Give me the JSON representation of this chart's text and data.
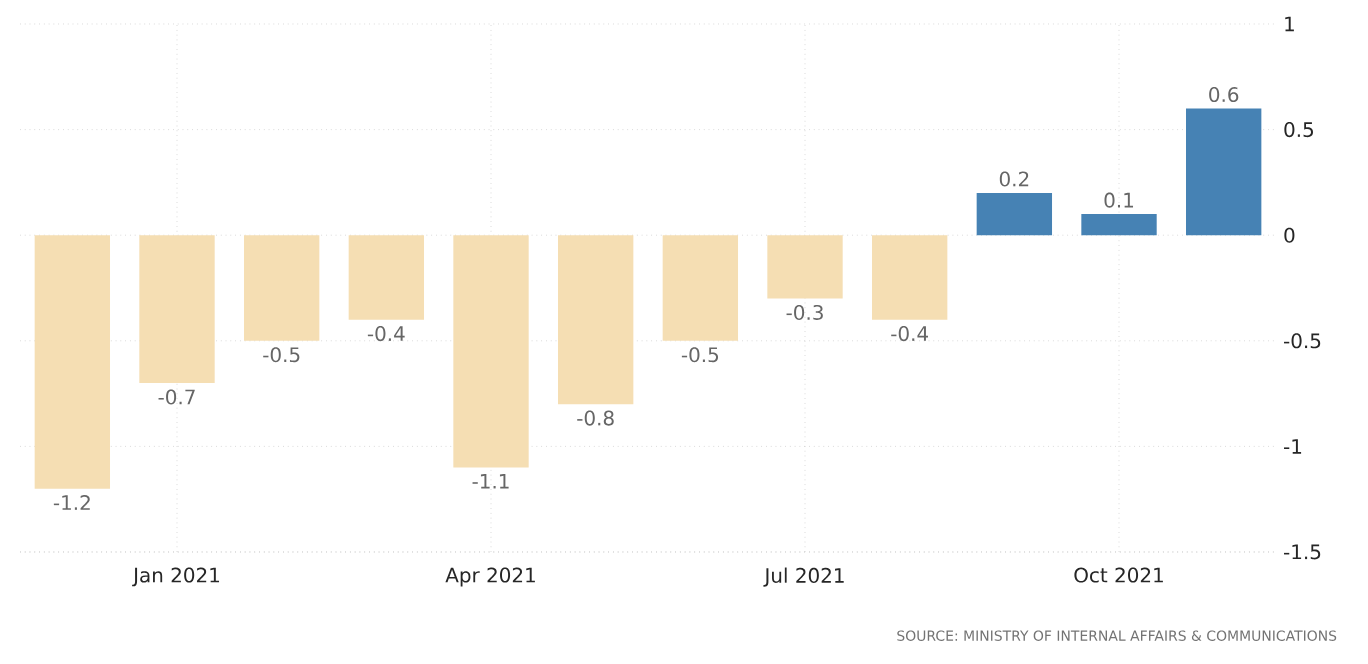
{
  "chart_data": {
    "type": "bar",
    "categories": [
      null,
      "Jan 2021",
      null,
      null,
      "Apr 2021",
      null,
      null,
      "Jul 2021",
      null,
      null,
      "Oct 2021",
      null
    ],
    "values": [
      -1.2,
      -0.7,
      -0.5,
      -0.4,
      -1.1,
      -0.8,
      -0.5,
      -0.3,
      -0.4,
      0.2,
      0.1,
      0.6
    ],
    "colors": [
      "#f5deb3",
      "#f5deb3",
      "#f5deb3",
      "#f5deb3",
      "#f5deb3",
      "#f5deb3",
      "#f5deb3",
      "#f5deb3",
      "#f5deb3",
      "#4682b4",
      "#4682b4",
      "#4682b4"
    ],
    "ylim": [
      -1.5,
      1
    ],
    "yticks": [
      -1.5,
      -1,
      -0.5,
      0,
      0.5,
      1
    ],
    "grid": true,
    "data_labels": true,
    "annotations": [
      "SOURCE: MINISTRY OF INTERNAL AFFAIRS & COMMUNICATIONS"
    ]
  }
}
